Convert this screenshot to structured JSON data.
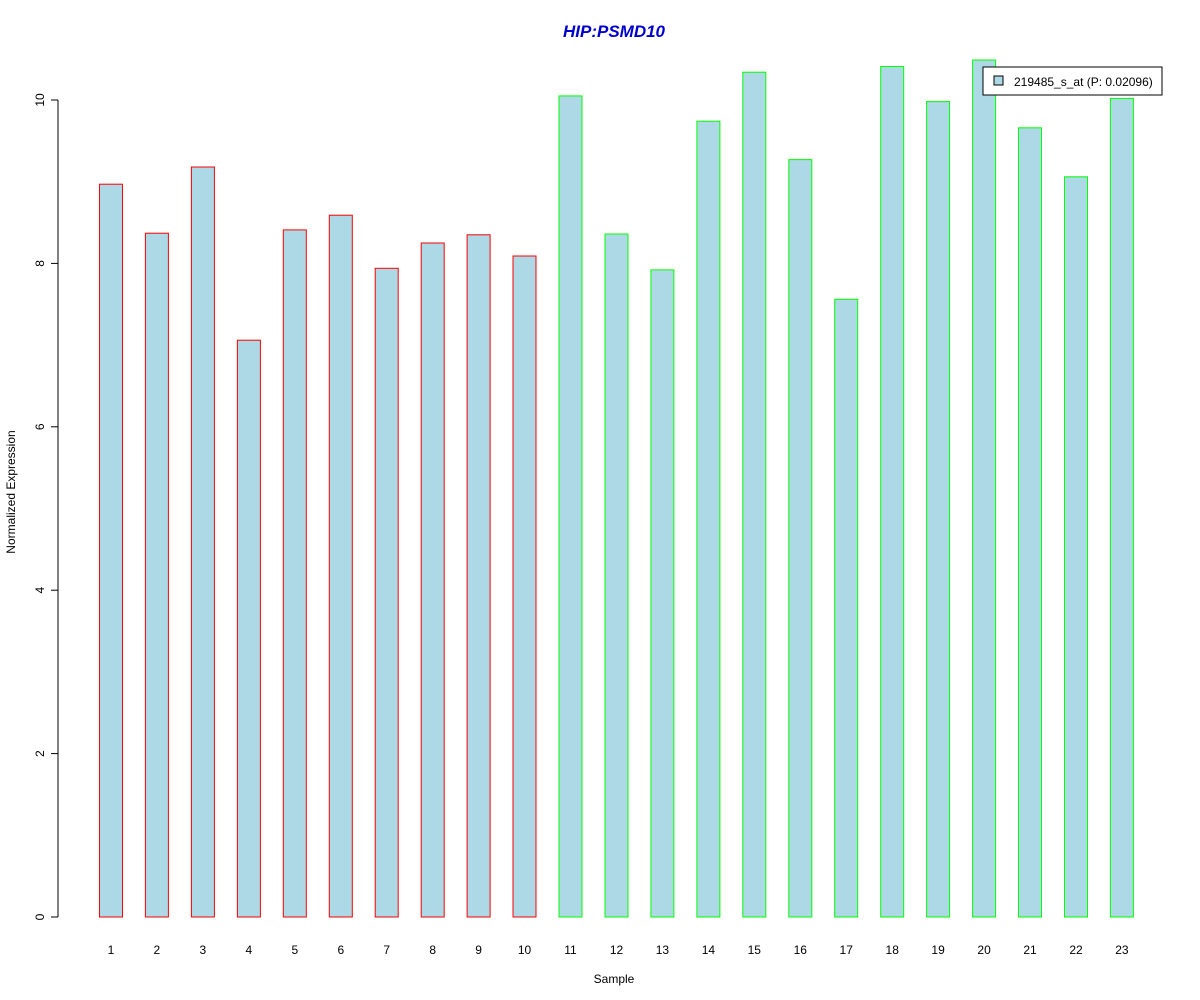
{
  "chart_data": {
    "type": "bar",
    "title": "HIP:PSMD10",
    "xlabel": "Sample",
    "ylabel": "Normalized Expression",
    "categories": [
      "1",
      "2",
      "3",
      "4",
      "5",
      "6",
      "7",
      "8",
      "9",
      "10",
      "11",
      "12",
      "13",
      "14",
      "15",
      "16",
      "17",
      "18",
      "19",
      "20",
      "21",
      "22",
      "23"
    ],
    "series": [
      {
        "name": "219485_s_at (P: 0.02096)",
        "values": [
          8.97,
          8.37,
          9.18,
          7.06,
          8.41,
          8.59,
          7.94,
          8.25,
          8.35,
          8.09,
          10.05,
          8.36,
          7.92,
          9.74,
          10.34,
          9.27,
          7.56,
          10.41,
          9.98,
          10.49,
          9.66,
          9.06,
          10.02
        ]
      }
    ],
    "bar_fill": "#add8e6",
    "edge_colors": [
      "#ff0000",
      "#ff0000",
      "#ff0000",
      "#ff0000",
      "#ff0000",
      "#ff0000",
      "#ff0000",
      "#ff0000",
      "#ff0000",
      "#ff0000",
      "#00ff00",
      "#00ff00",
      "#00ff00",
      "#00ff00",
      "#00ff00",
      "#00ff00",
      "#00ff00",
      "#00ff00",
      "#00ff00",
      "#00ff00",
      "#00ff00",
      "#00ff00",
      "#00ff00"
    ],
    "title_color": "#0000cc",
    "ylim": [
      0,
      10.5
    ],
    "yticks": [
      0,
      2,
      4,
      6,
      8,
      10
    ],
    "grid": false,
    "legend_position": "top-right"
  }
}
